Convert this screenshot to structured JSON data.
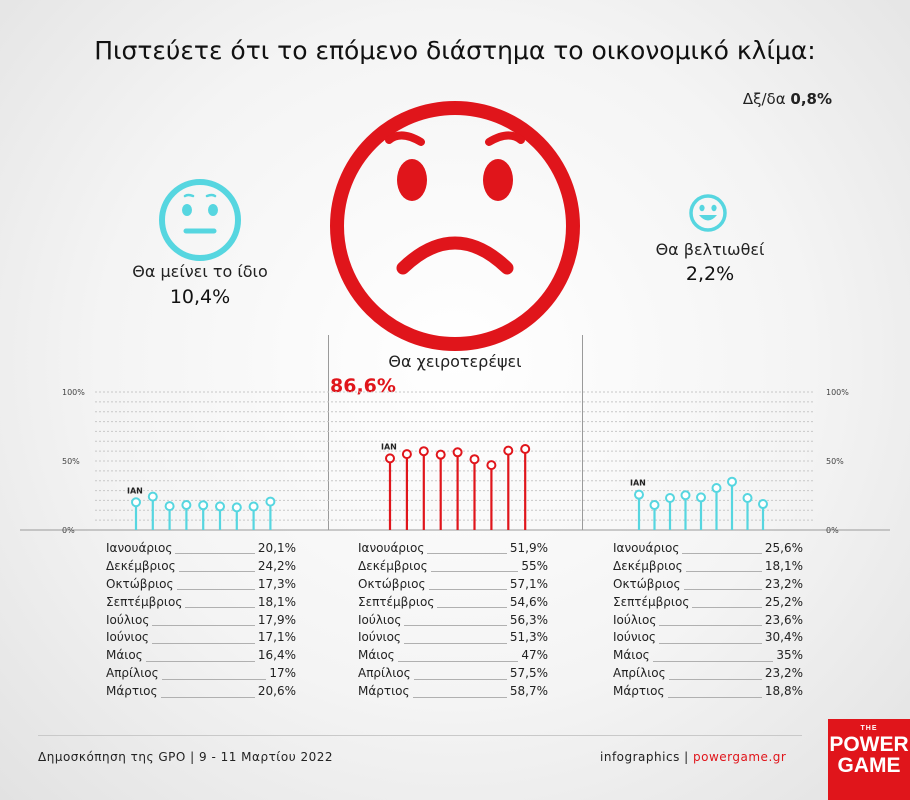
{
  "title": "Πιστεύετε ότι το επόμενο διάστημα το οικονομικό κλίμα:",
  "dk": {
    "label": "Δξ/δα",
    "value": "0,8%"
  },
  "options": {
    "same": {
      "label": "Θα μείνει το ίδιο",
      "value": "10,4%"
    },
    "worse": {
      "label": "Θα χειροτερέψει",
      "value": "86,6%"
    },
    "better": {
      "label": "Θα βελτιωθεί",
      "value": "2,2%"
    }
  },
  "colors": {
    "cyan": "#56d6e0",
    "red": "#e0151b"
  },
  "chart_data": [
    {
      "type": "lollipop",
      "series": "Θα μείνει το ίδιο",
      "first_label": "ΙΑΝ",
      "y_ticks": [
        "100%",
        "50%",
        "0%"
      ],
      "ylim": [
        0,
        100
      ],
      "months": [
        "Ιανουάριος",
        "Δεκέμβριος",
        "Οκτώβριος",
        "Σεπτέμβριος",
        "Ιούλιος",
        "Ιούνιος",
        "Μάιος",
        "Απρίλιος",
        "Μάρτιος"
      ],
      "values": [
        20.1,
        24.2,
        17.3,
        18.1,
        17.9,
        17.1,
        16.4,
        17,
        20.6
      ],
      "value_labels": [
        "20,1%",
        "24,2%",
        "17,3%",
        "18,1%",
        "17,9%",
        "17,1%",
        "16,4%",
        "17%",
        "20,6%"
      ]
    },
    {
      "type": "lollipop",
      "series": "Θα χειροτερέψει",
      "first_label": "ΙΑΝ",
      "y_ticks": [
        "100%",
        "50%",
        "0%"
      ],
      "ylim": [
        0,
        100
      ],
      "months": [
        "Ιανουάριος",
        "Δεκέμβριος",
        "Οκτώβριος",
        "Σεπτέμβριος",
        "Ιούλιος",
        "Ιούνιος",
        "Μάιος",
        "Απρίλιος",
        "Μάρτιος"
      ],
      "values": [
        51.9,
        55,
        57.1,
        54.6,
        56.3,
        51.3,
        47,
        57.5,
        58.7
      ],
      "value_labels": [
        "51,9%",
        "55%",
        "57,1%",
        "54,6%",
        "56,3%",
        "51,3%",
        "47%",
        "57,5%",
        "58,7%"
      ]
    },
    {
      "type": "lollipop",
      "series": "Θα βελτιωθεί",
      "first_label": "ΙΑΝ",
      "y_ticks": [
        "100%",
        "50%",
        "0%"
      ],
      "ylim": [
        0,
        100
      ],
      "months": [
        "Ιανουάριος",
        "Δεκέμβριος",
        "Οκτώβριος",
        "Σεπτέμβριος",
        "Ιούλιος",
        "Ιούνιος",
        "Μάιος",
        "Απρίλιος",
        "Μάρτιος"
      ],
      "values": [
        25.6,
        18.1,
        23.2,
        25.2,
        23.6,
        30.4,
        35,
        23.2,
        18.8
      ],
      "value_labels": [
        "25,6%",
        "18,1%",
        "23,2%",
        "25,2%",
        "23,6%",
        "30,4%",
        "35%",
        "23,2%",
        "18,8%"
      ]
    }
  ],
  "footer": {
    "source": "Δημοσκόπηση της GPO | 9 - 11 Μαρτίου 2022",
    "credit": "infographics |",
    "url": "powergame.gr"
  },
  "logo": {
    "the": "THE",
    "line1": "POWER",
    "line2": "GAME"
  }
}
